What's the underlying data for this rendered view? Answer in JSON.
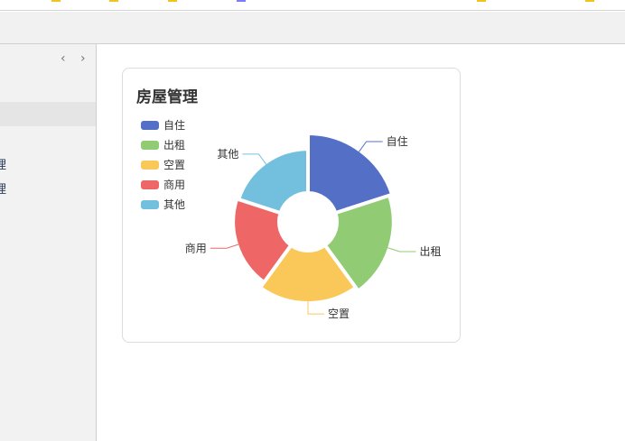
{
  "sidebar": {
    "items": [
      {
        "label": "理"
      },
      {
        "label": "理"
      }
    ]
  },
  "card": {
    "title": "房屋管理"
  },
  "chart_data": {
    "type": "pie",
    "rose": true,
    "title": "房屋管理",
    "legend_position": "top-left",
    "categories": [
      "自住",
      "出租",
      "空置",
      "商用",
      "其他"
    ],
    "values": [
      100,
      95,
      88,
      77,
      74
    ],
    "colors": [
      "#5470c6",
      "#91cc75",
      "#fac858",
      "#ee6666",
      "#73c0de"
    ]
  }
}
